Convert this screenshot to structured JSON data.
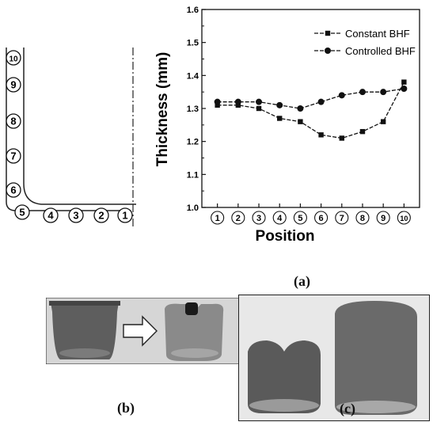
{
  "schematic": {
    "position_labels": [
      "1",
      "2",
      "3",
      "4",
      "5",
      "6",
      "7",
      "8",
      "9",
      "10"
    ]
  },
  "panel_labels": {
    "a": "(a)",
    "b": "(b)",
    "c": "(c)"
  },
  "chart_data": {
    "type": "line",
    "xlabel": "Position",
    "ylabel": "Thickness (mm)",
    "categories": [
      "1",
      "2",
      "3",
      "4",
      "5",
      "6",
      "7",
      "8",
      "9",
      "10"
    ],
    "ylim": [
      1.0,
      1.6
    ],
    "yticks": [
      "1.0",
      "1.1",
      "1.2",
      "1.3",
      "1.4",
      "1.5",
      "1.6"
    ],
    "legend_position": "top-right",
    "grid": false,
    "series": [
      {
        "name": "Constant BHF",
        "marker": "square",
        "color": "#111111",
        "values": [
          1.31,
          1.31,
          1.3,
          1.27,
          1.26,
          1.22,
          1.21,
          1.23,
          1.26,
          1.38
        ]
      },
      {
        "name": "Controlled BHF",
        "marker": "circle",
        "color": "#111111",
        "values": [
          1.32,
          1.32,
          1.32,
          1.31,
          1.3,
          1.32,
          1.34,
          1.35,
          1.35,
          1.36
        ]
      }
    ]
  },
  "photos": {
    "b": {
      "cup_color": "#5e5e5e",
      "arrow_color": "#ffffff"
    },
    "c": {
      "cup_color": "#6a6a6a"
    }
  }
}
